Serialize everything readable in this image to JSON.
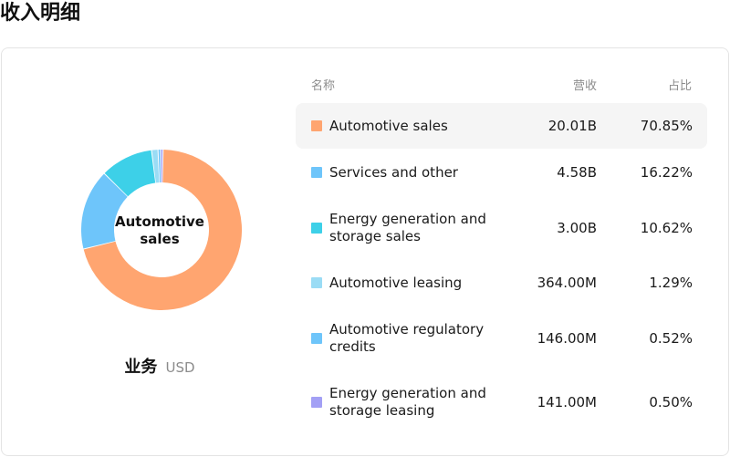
{
  "page_title": "收入明细",
  "donut": {
    "center_label": "Automotive sales"
  },
  "caption": {
    "label": "业务",
    "unit": "USD"
  },
  "table": {
    "headers": {
      "name": "名称",
      "revenue": "营收",
      "share": "占比"
    },
    "rows": [
      {
        "name": "Automotive sales",
        "revenue": "20.01B",
        "share": "70.85%",
        "color": "#FFA570",
        "selected": true
      },
      {
        "name": "Services and other",
        "revenue": "4.58B",
        "share": "16.22%",
        "color": "#6EC5FA",
        "selected": false
      },
      {
        "name": "Energy generation and storage sales",
        "revenue": "3.00B",
        "share": "10.62%",
        "color": "#3DD0E8",
        "selected": false
      },
      {
        "name": "Automotive leasing",
        "revenue": "364.00M",
        "share": "1.29%",
        "color": "#9ADCF5",
        "selected": false
      },
      {
        "name": "Automotive regulatory credits",
        "revenue": "146.00M",
        "share": "0.52%",
        "color": "#6EC5FA",
        "selected": false
      },
      {
        "name": "Energy generation and storage leasing",
        "revenue": "141.00M",
        "share": "0.50%",
        "color": "#A3A0F5",
        "selected": false
      }
    ]
  },
  "chart_data": {
    "type": "pie",
    "categories": [
      "Automotive sales",
      "Services and other",
      "Energy generation and storage sales",
      "Automotive leasing",
      "Automotive regulatory credits",
      "Energy generation and storage leasing"
    ],
    "values": [
      70.85,
      16.22,
      10.62,
      1.29,
      0.52,
      0.5
    ],
    "colors": [
      "#FFA570",
      "#6EC5FA",
      "#3DD0E8",
      "#9ADCF5",
      "#6EC5FA",
      "#A3A0F5"
    ],
    "donut": true
  }
}
